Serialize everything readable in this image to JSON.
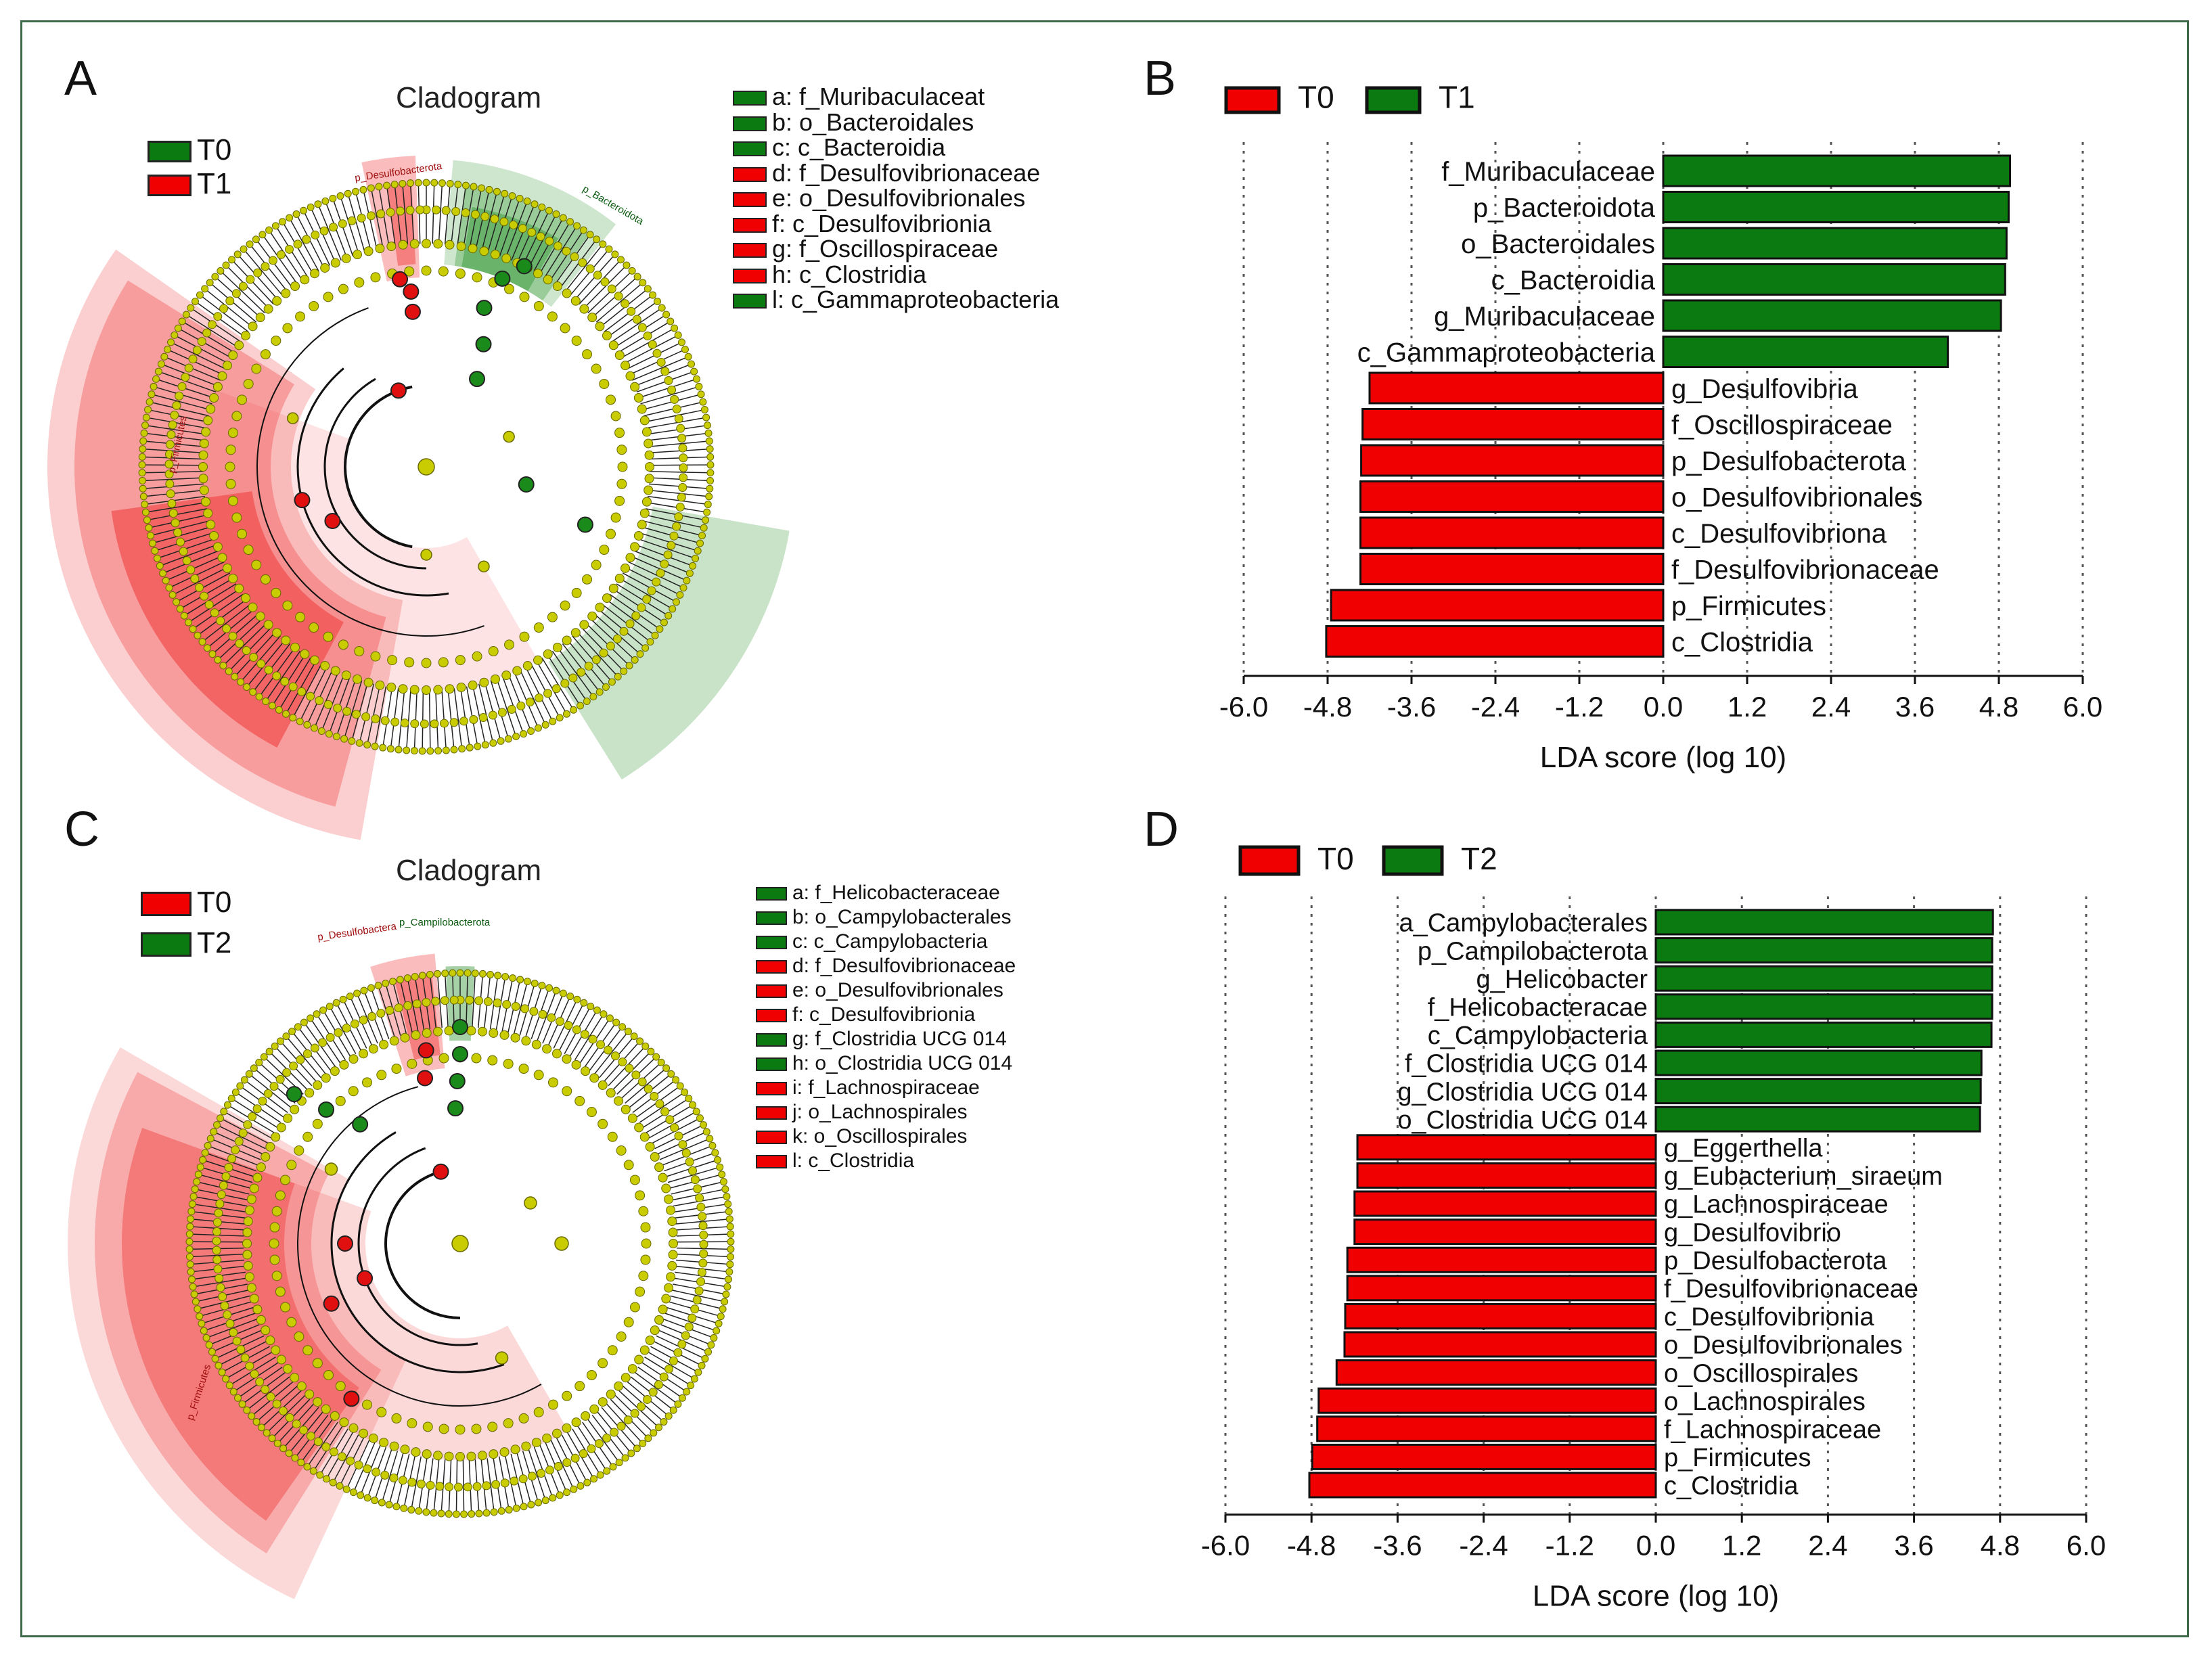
{
  "panel_labels": {
    "a": "A",
    "b": "B",
    "c": "C",
    "d": "D"
  },
  "cladogram_title": "Cladogram",
  "colors": {
    "red": "#f00000",
    "green": "#0b7a10",
    "node_yellow": "#c8cc00",
    "frame": "#3d6b4a"
  },
  "cladogram_a": {
    "groups": [
      "T0",
      "T1"
    ],
    "group_colors": [
      "green",
      "red"
    ],
    "clades": {
      "desulfo": "p_Desulfobacterota",
      "bactero": "p_Bacteroidota",
      "firmicutes": "p_Firmicutes"
    },
    "legend": [
      {
        "key": "a",
        "text": "a: f_Muribaculaceat",
        "color": "green"
      },
      {
        "key": "b",
        "text": "b: o_Bacteroidales",
        "color": "green"
      },
      {
        "key": "c",
        "text": "c: c_Bacteroidia",
        "color": "green"
      },
      {
        "key": "d",
        "text": "d: f_Desulfovibrionaceae",
        "color": "red"
      },
      {
        "key": "e",
        "text": "e: o_Desulfovibrionales",
        "color": "red"
      },
      {
        "key": "f",
        "text": "f: c_Desulfovibrionia",
        "color": "red"
      },
      {
        "key": "g",
        "text": "g: f_Oscillospiraceae",
        "color": "red"
      },
      {
        "key": "h",
        "text": "h: c_Clostridia",
        "color": "red"
      },
      {
        "key": "l",
        "text": "l: c_Gammaproteobacteria",
        "color": "green"
      }
    ]
  },
  "cladogram_c": {
    "groups": [
      "T0",
      "T2"
    ],
    "group_colors": [
      "red",
      "green"
    ],
    "clades": {
      "desulfo": "p_Desulfobactera",
      "campylo": "p_Campilobacterota",
      "firmicutes": "p_Firmicutes"
    },
    "legend": [
      {
        "key": "a",
        "text": "a: f_Helicobacteraceae",
        "color": "green"
      },
      {
        "key": "b",
        "text": "b: o_Campylobacterales",
        "color": "green"
      },
      {
        "key": "c",
        "text": "c: c_Campylobacteria",
        "color": "green"
      },
      {
        "key": "d",
        "text": "d: f_Desulfovibrionaceae",
        "color": "red"
      },
      {
        "key": "e",
        "text": "e: o_Desulfovibrionales",
        "color": "red"
      },
      {
        "key": "f",
        "text": "f: c_Desulfovibrionia",
        "color": "red"
      },
      {
        "key": "g",
        "text": "g: f_Clostridia UCG 014",
        "color": "green"
      },
      {
        "key": "h",
        "text": "h: o_Clostridia UCG 014",
        "color": "green"
      },
      {
        "key": "i",
        "text": "i: f_Lachnospiraceae",
        "color": "red"
      },
      {
        "key": "j",
        "text": "j: o_Lachnospirales",
        "color": "red"
      },
      {
        "key": "k",
        "text": "k: o_Oscillospirales",
        "color": "red"
      },
      {
        "key": "l",
        "text": "l: c_Clostridia",
        "color": "red"
      }
    ]
  },
  "chart_data": [
    {
      "panel": "B",
      "type": "bar",
      "orientation": "horizontal",
      "xlabel": "LDA score (log 10)",
      "xlim": [
        -6.0,
        6.0
      ],
      "ticks": [
        "-6.0",
        "-4.8",
        "-3.6",
        "-2.4",
        "-1.2",
        "0.0",
        "1.2",
        "2.4",
        "3.6",
        "4.8",
        "6.0"
      ],
      "legend": [
        {
          "name": "T0",
          "color": "red"
        },
        {
          "name": "T1",
          "color": "green"
        }
      ],
      "categories": [
        "f_Muribaculaceae",
        "p_Bacteroidota",
        "o_Bacteroidales",
        "c_Bacteroidia",
        "g_Muribaculaceae",
        "c_Gammaproteobacteria",
        "g_Desulfovibria",
        "f_Oscillospiraceae",
        "p_Desulfobacterota",
        "o_Desulfovibrionales",
        "c_Desulfovibriona",
        "f_Desulfovibrionaceae",
        "p_Firmicutes",
        "c_Clostridia"
      ],
      "values": [
        4.96,
        4.94,
        4.91,
        4.89,
        4.83,
        4.07,
        -4.2,
        -4.3,
        -4.32,
        -4.33,
        -4.33,
        -4.33,
        -4.75,
        -4.82
      ]
    },
    {
      "panel": "D",
      "type": "bar",
      "orientation": "horizontal",
      "xlabel": "LDA score (log 10)",
      "xlim": [
        -6.0,
        6.0
      ],
      "ticks": [
        "-6.0",
        "-4.8",
        "-3.6",
        "-2.4",
        "-1.2",
        "0.0",
        "1.2",
        "2.4",
        "3.6",
        "4.8",
        "6.0"
      ],
      "legend": [
        {
          "name": "T0",
          "color": "red"
        },
        {
          "name": "T2",
          "color": "green"
        }
      ],
      "categories": [
        "a_Campylobacterales",
        "p_Campilobacterota",
        "g_Helicobacter",
        "f_Helicobacteracae",
        "c_Campylobacteria",
        "f_Clostridia UCG 014",
        "g_Clostridia UCG 014",
        "o_Clostridia UCG 014",
        "g_Eggerthella",
        "g_Eubacterium_siraeum",
        "g_Lachnospiraceae",
        "g_Desulfovibrio",
        "p_Desulfobacterota",
        "f_Desulfovibrionaceae",
        "c_Desulfovibrionia",
        "o_Desulfovibrionales",
        "o_Oscillospirales",
        "o_Lachnospirales",
        "f_Lachnospiraceae",
        "p_Firmicutes",
        "c_Clostridia"
      ],
      "values": [
        4.7,
        4.69,
        4.69,
        4.69,
        4.68,
        4.54,
        4.53,
        4.52,
        -4.16,
        -4.16,
        -4.2,
        -4.2,
        -4.3,
        -4.3,
        -4.33,
        -4.34,
        -4.45,
        -4.7,
        -4.72,
        -4.79,
        -4.83
      ]
    }
  ]
}
